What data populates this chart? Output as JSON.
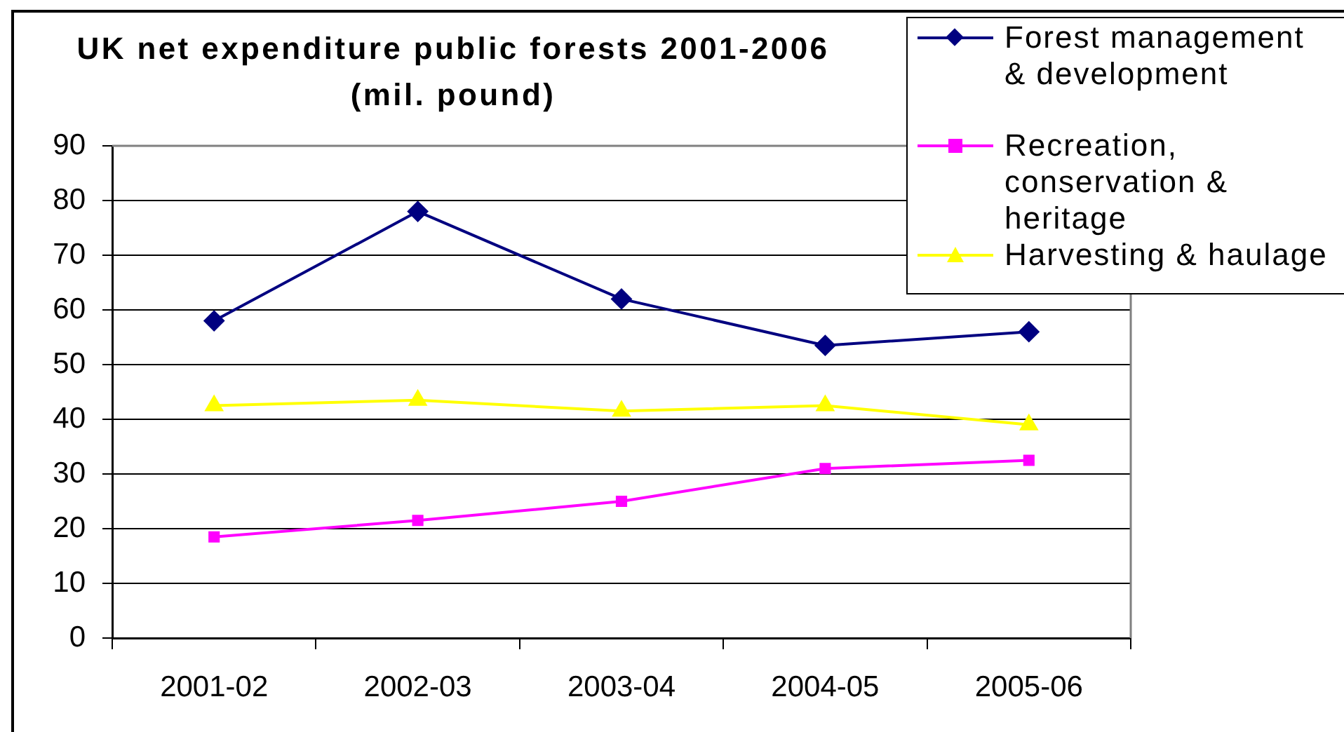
{
  "chart_data": {
    "type": "line",
    "title": "UK net expenditure public forests 2001-2006 (mil. pound)",
    "categories": [
      "2001-02",
      "2002-03",
      "2003-04",
      "2004-05",
      "2005-06"
    ],
    "series": [
      {
        "name": "Forest management & development",
        "color": "#000080",
        "marker": "diamond",
        "values": [
          58,
          78,
          62,
          53.5,
          56
        ]
      },
      {
        "name": "Recreation, conservation & heritage",
        "color": "#ff00ff",
        "marker": "square",
        "values": [
          18.5,
          21.5,
          25,
          31,
          32.5
        ]
      },
      {
        "name": "Harvesting & haulage",
        "color": "#ffff00",
        "marker": "triangle",
        "values": [
          42.5,
          43.5,
          41.5,
          42.5,
          39
        ]
      }
    ],
    "ylim": [
      0,
      90
    ],
    "yticks": [
      0,
      10,
      20,
      30,
      40,
      50,
      60,
      70,
      80,
      90
    ],
    "grid": "y",
    "legend": "top right"
  }
}
